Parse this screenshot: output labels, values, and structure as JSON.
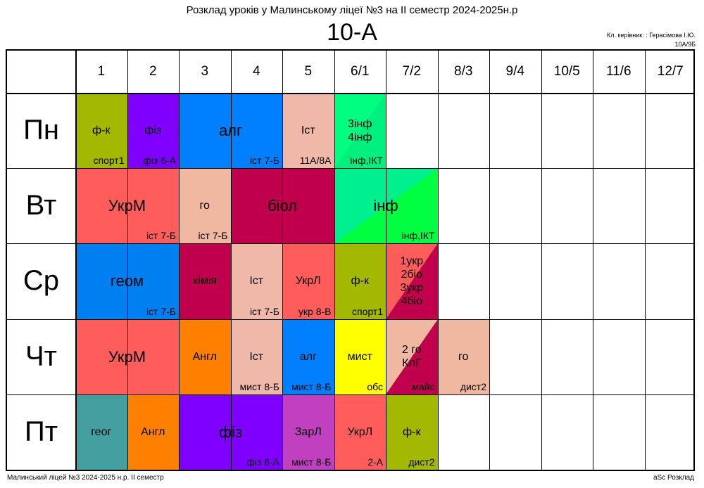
{
  "header": {
    "title": "Розклад уроків у Малинському ліцеї №3 на ІІ семестр 2024-2025н.р",
    "class_name": "10-А",
    "teacher_line": "Кл. керівник: : Герасімова І.Ю.",
    "room_line": "10А/9Б"
  },
  "periods": [
    "1",
    "2",
    "3",
    "4",
    "5",
    "6/1",
    "7/2",
    "8/3",
    "9/4",
    "10/5",
    "11/6",
    "12/7"
  ],
  "days": [
    "Пн",
    "Вт",
    "Ср",
    "Чт",
    "Пт"
  ],
  "lessons": [
    {
      "day": 0,
      "start": 0,
      "span": 1,
      "subject": "ф-к",
      "room": "спорт1",
      "color": "#a3b800"
    },
    {
      "day": 0,
      "start": 1,
      "span": 1,
      "subject": "фіз",
      "room": "фіз 6-А",
      "color": "#8000ff"
    },
    {
      "day": 0,
      "start": 2,
      "span": 2,
      "subject": "алг",
      "room": "іст 7-Б",
      "color": "#0080ff",
      "big": true
    },
    {
      "day": 0,
      "start": 4,
      "span": 1,
      "subject": "Іст",
      "room": "11А/8А",
      "color": "#f0b8a8"
    },
    {
      "day": 0,
      "start": 5,
      "span": 1,
      "subject": "3інф\n4інф",
      "room": "інф,ІКТ",
      "color": "#00ff80",
      "color2": "#00f080"
    },
    {
      "day": 1,
      "start": 0,
      "span": 2,
      "subject": "УкрМ",
      "room": "іст 7-Б",
      "color": "#ff5c5c",
      "big": true
    },
    {
      "day": 1,
      "start": 2,
      "span": 1,
      "subject": "го",
      "room": "іст 7-Б",
      "color": "#f0b8a0"
    },
    {
      "day": 1,
      "start": 3,
      "span": 2,
      "subject": "біол",
      "room": "",
      "color": "#c0004c",
      "big": true
    },
    {
      "day": 1,
      "start": 5,
      "span": 2,
      "subject": "інф",
      "room": "інф,ІКТ",
      "color": "#00f090",
      "color2": "#00ff40",
      "big": true
    },
    {
      "day": 2,
      "start": 0,
      "span": 2,
      "subject": "геом",
      "room": "іст 7-Б",
      "color": "#0080f0",
      "big": true
    },
    {
      "day": 2,
      "start": 2,
      "span": 1,
      "subject": "хімія",
      "room": "",
      "color": "#c0004c"
    },
    {
      "day": 2,
      "start": 3,
      "span": 1,
      "subject": "Іст",
      "room": "іст 7-Б",
      "color": "#f0b8a8"
    },
    {
      "day": 2,
      "start": 4,
      "span": 1,
      "subject": "УкрЛ",
      "room": "укр 8-В",
      "color": "#ff5c5c"
    },
    {
      "day": 2,
      "start": 5,
      "span": 1,
      "subject": "ф-к",
      "room": "спорт1",
      "color": "#a3b800"
    },
    {
      "day": 2,
      "start": 6,
      "span": 1,
      "subject": "1укр\n2біо\n3укр\n4біо",
      "room": "",
      "color": "#ff5c5c",
      "color2": "#c0004c"
    },
    {
      "day": 3,
      "start": 0,
      "span": 2,
      "subject": "УкрМ",
      "room": "",
      "color": "#ff5c5c",
      "big": true
    },
    {
      "day": 3,
      "start": 2,
      "span": 1,
      "subject": "Англ",
      "room": "",
      "color": "#ff8000"
    },
    {
      "day": 3,
      "start": 3,
      "span": 1,
      "subject": "Іст",
      "room": "мист 8-Б",
      "color": "#f0b8a8"
    },
    {
      "day": 3,
      "start": 4,
      "span": 1,
      "subject": "алг",
      "room": "мист 8-Б",
      "color": "#0080ff"
    },
    {
      "day": 3,
      "start": 5,
      "span": 1,
      "subject": "мист",
      "room": "обс",
      "color": "#ffff00"
    },
    {
      "day": 3,
      "start": 6,
      "span": 1,
      "subject": "2 го\nКлГ",
      "room": "майс",
      "color": "#f0b8a0",
      "color2": "#c0004c"
    },
    {
      "day": 3,
      "start": 7,
      "span": 1,
      "subject": "го",
      "room": "дист2",
      "color": "#f0b8a0"
    },
    {
      "day": 4,
      "start": 0,
      "span": 1,
      "subject": "геог",
      "room": "",
      "color": "#44a0a0"
    },
    {
      "day": 4,
      "start": 1,
      "span": 1,
      "subject": "Англ",
      "room": "",
      "color": "#ff8000"
    },
    {
      "day": 4,
      "start": 2,
      "span": 2,
      "subject": "фіз",
      "room": "фіз 6-А",
      "color": "#8000ff",
      "big": true
    },
    {
      "day": 4,
      "start": 4,
      "span": 1,
      "subject": "ЗарЛ",
      "room": "мист 8-Б",
      "color": "#c040c0"
    },
    {
      "day": 4,
      "start": 5,
      "span": 1,
      "subject": "УкрЛ",
      "room": "2-А",
      "color": "#ff5c5c"
    },
    {
      "day": 4,
      "start": 6,
      "span": 1,
      "subject": "ф-к",
      "room": "дист2",
      "color": "#a3b800"
    }
  ],
  "footer": {
    "left": "Малинський ліцей №3  2024-2025 н.р. ІІ семестр",
    "right": "aSc Розклад"
  }
}
